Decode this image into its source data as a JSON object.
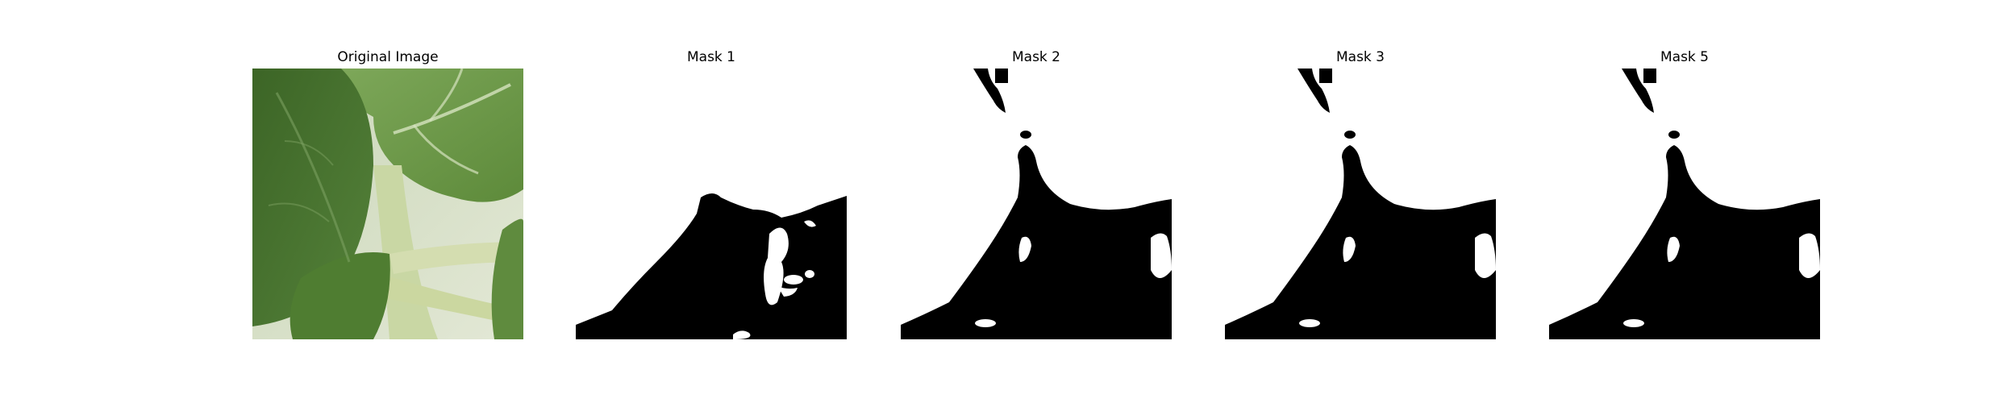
{
  "figure": {
    "panels": [
      {
        "title": "Original Image"
      },
      {
        "title": "Mask 1"
      },
      {
        "title": "Mask 2"
      },
      {
        "title": "Mask 3"
      },
      {
        "title": "Mask 5"
      }
    ]
  },
  "colors": {
    "background": "#ffffff",
    "mask_foreground": "#000000",
    "mask_background": "#ffffff",
    "leaf_dark": "#3f6a2a",
    "leaf_mid": "#5c8a3c",
    "leaf_light": "#8db56a",
    "stem": "#cfd9b0",
    "bg_blur": "#d9e2cf"
  }
}
